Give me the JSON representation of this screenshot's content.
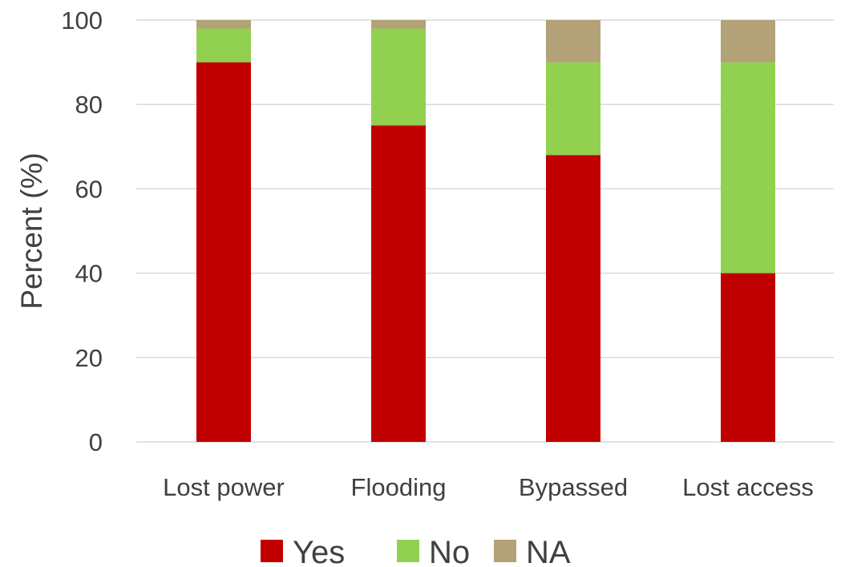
{
  "chart_data": {
    "type": "bar",
    "stacked": true,
    "categories": [
      "Lost power",
      "Flooding",
      "Bypassed",
      "Lost access"
    ],
    "series": [
      {
        "name": "Yes",
        "color": "#c00000",
        "values": [
          90,
          75,
          68,
          40
        ]
      },
      {
        "name": "No",
        "color": "#92d050",
        "values": [
          8,
          23,
          22,
          50
        ]
      },
      {
        "name": "NA",
        "color": "#b3a178",
        "values": [
          2,
          2,
          10,
          10
        ]
      }
    ],
    "title": "",
    "xlabel": "",
    "ylabel": "Percent (%)",
    "ylim": [
      0,
      100
    ],
    "yticks": [
      "0",
      "20",
      "40",
      "60",
      "80",
      "100"
    ],
    "grid": true,
    "legend_position": "bottom"
  }
}
